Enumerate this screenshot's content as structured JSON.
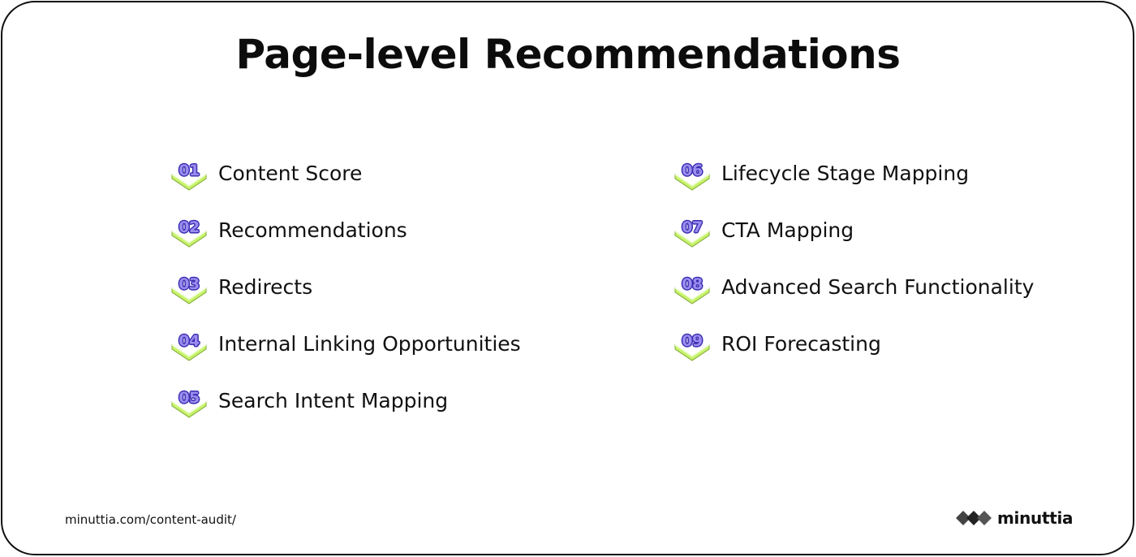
{
  "title": "Page-level Recommendations",
  "left_items": [
    {
      "number": "01",
      "label": "Content Score"
    },
    {
      "number": "02",
      "label": "Recommendations"
    },
    {
      "number": "03",
      "label": "Redirects"
    },
    {
      "number": "04",
      "label": "Internal Linking Opportunities"
    },
    {
      "number": "05",
      "label": "Search Intent Mapping"
    }
  ],
  "right_items": [
    {
      "number": "06",
      "label": "Lifecycle Stage Mapping"
    },
    {
      "number": "07",
      "label": "CTA Mapping"
    },
    {
      "number": "08",
      "label": "Advanced Search Functionality"
    },
    {
      "number": "09",
      "label": "ROI Forecasting"
    }
  ],
  "footer": {
    "url": "minuttia.com/content-audit/",
    "brand": "minuttia"
  },
  "colors": {
    "badge_number": "#9c8cf0",
    "badge_outline": "#3b2fb0",
    "badge_arrow": "#c6f26a",
    "text": "#111111"
  },
  "icons": {
    "badge": "green-chevron-badge",
    "logo": "minuttia-diamonds-logo"
  }
}
